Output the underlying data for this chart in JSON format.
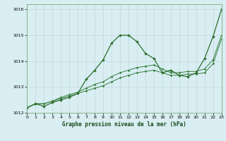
{
  "background_color": "#d8eef2",
  "grid_color": "#c0d8dc",
  "line_color_dark": "#2d6e2d",
  "line_color_mid": "#3a8040",
  "title": "Graphe pression niveau de la mer (hPa)",
  "xlim": [
    0,
    23
  ],
  "ylim": [
    1012.0,
    1016.2
  ],
  "yticks": [
    1012,
    1013,
    1014,
    1015,
    1016
  ],
  "xticks": [
    0,
    1,
    2,
    3,
    4,
    5,
    6,
    7,
    8,
    9,
    10,
    11,
    12,
    13,
    14,
    15,
    16,
    17,
    18,
    19,
    20,
    21,
    22,
    23
  ],
  "series1_x": [
    0,
    1,
    2,
    3,
    4,
    5,
    6,
    7,
    8,
    9,
    10,
    11,
    12,
    13,
    14,
    15,
    16,
    17,
    18,
    19,
    20,
    21,
    22,
    23
  ],
  "series1_y": [
    1012.2,
    1012.35,
    1012.35,
    1012.45,
    1012.55,
    1012.65,
    1012.75,
    1012.85,
    1012.95,
    1013.05,
    1013.2,
    1013.35,
    1013.45,
    1013.55,
    1013.6,
    1013.65,
    1013.55,
    1013.45,
    1013.45,
    1013.5,
    1013.5,
    1013.55,
    1013.9,
    1014.85
  ],
  "series2_x": [
    0,
    1,
    2,
    3,
    4,
    5,
    6,
    7,
    8,
    9,
    10,
    11,
    12,
    13,
    14,
    15,
    16,
    17,
    18,
    19,
    20,
    21,
    22,
    23
  ],
  "series2_y": [
    1012.2,
    1012.35,
    1012.35,
    1012.45,
    1012.6,
    1012.7,
    1012.8,
    1012.95,
    1013.1,
    1013.2,
    1013.4,
    1013.55,
    1013.65,
    1013.75,
    1013.8,
    1013.85,
    1013.7,
    1013.55,
    1013.55,
    1013.6,
    1013.6,
    1013.7,
    1014.05,
    1015.0
  ],
  "series3_x": [
    0,
    1,
    2,
    3,
    4,
    5,
    6,
    7,
    8,
    9,
    10,
    11,
    12,
    13,
    14,
    15,
    16,
    17,
    18,
    19,
    20,
    21,
    22,
    23
  ],
  "series3_y": [
    1012.2,
    1012.35,
    1012.25,
    1012.4,
    1012.5,
    1012.6,
    1012.75,
    1013.3,
    1013.65,
    1014.05,
    1014.7,
    1015.0,
    1015.0,
    1014.75,
    1014.3,
    1014.1,
    1013.55,
    1013.65,
    1013.45,
    1013.4,
    1013.55,
    1014.1,
    1014.95,
    1016.0
  ]
}
